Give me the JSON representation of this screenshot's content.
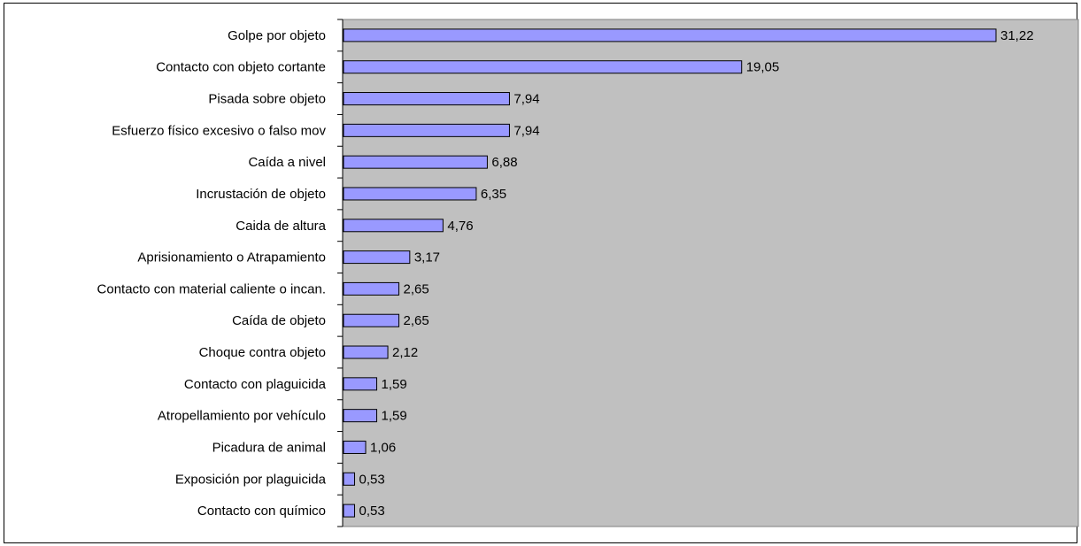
{
  "chart_data": {
    "type": "bar",
    "orientation": "horizontal",
    "categories": [
      "Golpe por objeto",
      "Contacto con objeto cortante",
      "Pisada sobre objeto",
      "Esfuerzo físico excesivo o falso mov",
      "Caída a nivel",
      "Incrustación de objeto ",
      "Caida de altura",
      "Aprisionamiento o Atrapamiento",
      "Contacto con material caliente o incan.",
      "Caída de objeto",
      "Choque contra objeto",
      "Contacto con plaguicida",
      "Atropellamiento por vehículo",
      "Picadura de animal",
      "Exposición por plaguicida",
      "Contacto con químico"
    ],
    "values": [
      31.22,
      19.05,
      7.94,
      7.94,
      6.88,
      6.35,
      4.76,
      3.17,
      2.65,
      2.65,
      2.12,
      1.59,
      1.59,
      1.06,
      0.53,
      0.53
    ],
    "value_labels": [
      "31,22",
      "19,05",
      "7,94",
      "7,94",
      "6,88",
      "6,35",
      "4,76",
      "3,17",
      "2,65",
      "2,65",
      "2,12",
      "1,59",
      "1,59",
      "1,06",
      "0,53",
      "0,53"
    ],
    "title": "",
    "xlabel": "",
    "ylabel": "",
    "xlim": [
      0,
      35
    ],
    "grid": false,
    "legend": "none",
    "colors": {
      "bar_fill": "#9999ff",
      "bar_stroke": "#000000",
      "plot_background": "#c0c0c0",
      "page_background": "#ffffff"
    }
  }
}
